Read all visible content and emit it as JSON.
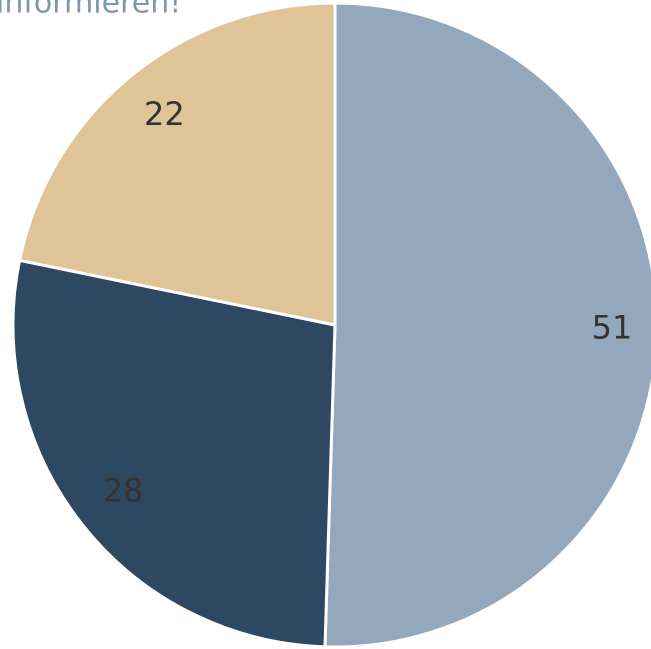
{
  "chart_data": {
    "type": "pie",
    "title": "informieren!",
    "categories": [
      null,
      null,
      null
    ],
    "values": [
      51,
      28,
      22
    ],
    "colors": [
      "#93a8bc",
      "#2e4862",
      "#dfc497"
    ]
  }
}
